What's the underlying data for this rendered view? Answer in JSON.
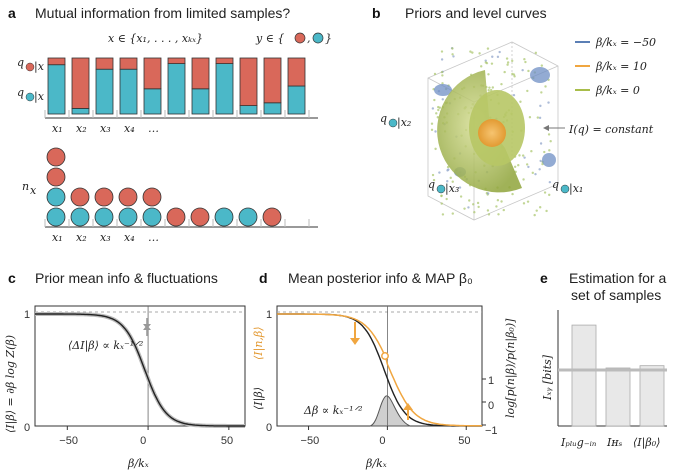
{
  "panel_a": {
    "label": "a",
    "title": "Mutual information from limited samples?",
    "x_set": "x ∈ {x₁, . . . , xₖₓ}",
    "y_set": "y ∈ {",
    "y_set_end": "}",
    "q_red": "q",
    "q_red_sub": "●|x",
    "q_blue": "q",
    "q_blue_sub": "●|x",
    "n_label": "n",
    "n_sub": "x",
    "x_ticks": [
      "x₁",
      "x₂",
      "x₃",
      "x₄",
      "…"
    ],
    "bar_red_fractions": [
      0.12,
      0.9,
      0.2,
      0.2,
      0.55,
      0.1,
      0.55,
      0.1,
      0.85,
      0.8,
      0.5
    ],
    "circle_stacks": [
      [
        "red",
        "red",
        "blue",
        "blue"
      ],
      [
        "red",
        "blue"
      ],
      [
        "red",
        "blue"
      ],
      [
        "red",
        "blue"
      ],
      [
        "red",
        "blue"
      ],
      [
        "red"
      ],
      [
        "red"
      ],
      [
        "blue"
      ],
      [
        "blue"
      ],
      [
        "red"
      ]
    ]
  },
  "panel_b": {
    "label": "b",
    "title": "Priors and level curves",
    "legend": [
      {
        "text": "β/kₓ = −50",
        "color": "#5b7fb5"
      },
      {
        "text": "β/kₓ = 10",
        "color": "#f0a640"
      },
      {
        "text": "β/kₓ = 0",
        "color": "#a8bd4a"
      }
    ],
    "level_curve": "I(q) = constant",
    "axis_x2": "q",
    "axis_x2_sub": "|x₂",
    "axis_x3": "q",
    "axis_x3_sub": "|x₃",
    "axis_x1": "q",
    "axis_x1_sub": "|x₁"
  },
  "panel_c": {
    "label": "c",
    "title": "Prior mean info & fluctuations",
    "ylabel": "⟨I|β⟩ = ∂β log Z(β)",
    "xlabel": "β/kₓ",
    "annotation": "⟨ΔI|β⟩ ∝ kₓ⁻¹ᐟ²",
    "ytick_top": "1",
    "ytick_bottom": "0"
  },
  "panel_d": {
    "label": "d",
    "title": "Mean posterior info & MAP β₀",
    "ylabel_left": "⟨I|β⟩",
    "ylabel_left_orange": "⟨I|n,β⟩",
    "ylabel_right": "log[p(n|β)/p(n|β₀)]",
    "xlabel": "β/kₓ",
    "annotation": "Δβ ∝ kₓ⁻¹ᐟ²",
    "ytick_top": "1",
    "ytick_bottom": "0",
    "right_ticks": [
      "1",
      "0",
      "−1"
    ]
  },
  "panel_e": {
    "label": "e",
    "title_line1": "Estimation for a",
    "title_line2": "set of samples",
    "ylabel": "Iₓᵧ [bits]",
    "bar_labels": [
      "Iₚₗᵤg₋ᵢₙ",
      "Iʜₛ",
      "⟨I|β₀⟩"
    ]
  },
  "chart_data": [
    {
      "type": "line",
      "title": "Prior mean info & fluctuations",
      "xlabel": "β/k_x",
      "ylabel": "⟨I|β⟩ = ∂_β log Z(β)",
      "x": [
        -70,
        -50,
        -30,
        -20,
        -10,
        -5,
        0,
        5,
        10,
        30,
        60
      ],
      "series": [
        {
          "name": "⟨I|β⟩",
          "values": [
            0.98,
            0.96,
            0.92,
            0.88,
            0.75,
            0.6,
            0.5,
            0.2,
            0.08,
            0.02,
            0.01
          ]
        }
      ],
      "xlim": [
        -70,
        60
      ],
      "ylim": [
        0,
        1
      ],
      "xticks": [
        "−50",
        "0",
        "50"
      ]
    },
    {
      "type": "line",
      "title": "Mean posterior info & MAP β0",
      "xlabel": "β/k_x",
      "x": [
        -70,
        -50,
        -30,
        -20,
        -10,
        -5,
        0,
        5,
        10,
        30,
        60
      ],
      "series": [
        {
          "name": "⟨I|β⟩",
          "values": [
            0.98,
            0.96,
            0.92,
            0.88,
            0.75,
            0.6,
            0.5,
            0.2,
            0.08,
            0.02,
            0.01
          ]
        },
        {
          "name": "⟨I|n,β⟩",
          "values": [
            0.98,
            0.96,
            0.93,
            0.9,
            0.8,
            0.68,
            0.55,
            0.28,
            0.12,
            0.05,
            0.04
          ]
        }
      ],
      "xlim": [
        -70,
        60
      ],
      "ylim": [
        0,
        1
      ],
      "xticks": [
        "−50",
        "0",
        "50"
      ]
    },
    {
      "type": "bar",
      "title": "Estimation for a set of samples",
      "ylabel": "I_XY [bits]",
      "categories": [
        "I_plug-in",
        "I_HS",
        "⟨I|β0⟩"
      ],
      "values": [
        0.87,
        0.5,
        0.52
      ],
      "reference_line": 0.5
    }
  ]
}
